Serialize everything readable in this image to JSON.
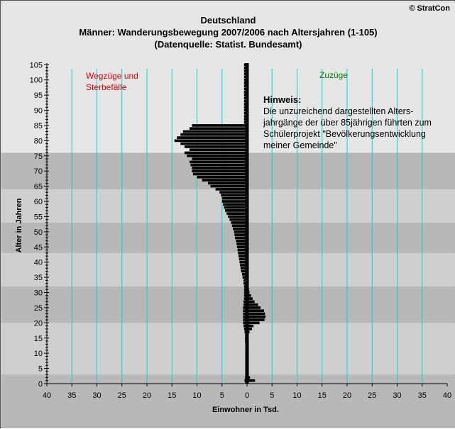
{
  "header": {
    "copyright": "© StratCon",
    "title_lines": [
      "Deutschland",
      "Männer: Wanderungsbewegung  2007/2006 nach Altersjahren (1-105)",
      "(Datenquelle: Statist. Bundesamt)"
    ]
  },
  "annotations": {
    "left_label": "Wegzüge und\nSterbefälle",
    "right_label": "Zuzüge",
    "note_title": "Hinweis:",
    "note_body": "Die unzureichend dargestellten Alters-\njahrgänge der über 85jährigen führten zum\nSchülerprojekt \"Bevölkerungsentwicklung\nmeiner Gemeinde\""
  },
  "colors": {
    "bars": "#000000",
    "gridline_vertical": "#00d8d8",
    "left_label": "#e00000",
    "right_label": "#008000",
    "band_dark": "#b8b8b8",
    "band_light": "#cfcfcf",
    "band_top": "#e6e6e6",
    "frame_background": "#d6d6d6"
  },
  "chart_data": {
    "type": "bar",
    "orientation": "horizontal",
    "title": "Deutschland",
    "xlabel": "Einwohner in Tsd.",
    "ylabel": "Alter in Jahren",
    "xlim": [
      -40,
      40
    ],
    "ylim": [
      0,
      106
    ],
    "x_ticks": [
      -40,
      -35,
      -30,
      -25,
      -20,
      -15,
      -10,
      -5,
      0,
      5,
      10,
      15,
      20,
      25,
      30,
      35,
      40
    ],
    "x_tick_labels": [
      "40",
      "35",
      "30",
      "25",
      "20",
      "15",
      "10",
      "5",
      "0",
      "5",
      "10",
      "15",
      "20",
      "25",
      "30",
      "35",
      "40"
    ],
    "y_ticks": [
      0,
      5,
      10,
      15,
      20,
      25,
      30,
      35,
      40,
      45,
      50,
      55,
      60,
      65,
      70,
      75,
      80,
      85,
      90,
      95,
      100,
      105
    ],
    "background_bands": [
      {
        "from": 0,
        "to": 3,
        "shade": "dark"
      },
      {
        "from": 3,
        "to": 20,
        "shade": "light"
      },
      {
        "from": 20,
        "to": 32,
        "shade": "dark"
      },
      {
        "from": 32,
        "to": 43,
        "shade": "light"
      },
      {
        "from": 43,
        "to": 53,
        "shade": "dark"
      },
      {
        "from": 53,
        "to": 64,
        "shade": "light"
      },
      {
        "from": 64,
        "to": 76,
        "shade": "dark"
      },
      {
        "from": 76,
        "to": 106,
        "shade": "top"
      }
    ],
    "ages": [
      1,
      2,
      3,
      4,
      5,
      6,
      7,
      8,
      9,
      10,
      11,
      12,
      13,
      14,
      15,
      16,
      17,
      18,
      19,
      20,
      21,
      22,
      23,
      24,
      25,
      26,
      27,
      28,
      29,
      30,
      31,
      32,
      33,
      34,
      35,
      36,
      37,
      38,
      39,
      40,
      41,
      42,
      43,
      44,
      45,
      46,
      47,
      48,
      49,
      50,
      51,
      52,
      53,
      54,
      55,
      56,
      57,
      58,
      59,
      60,
      61,
      62,
      63,
      64,
      65,
      66,
      67,
      68,
      69,
      70,
      71,
      72,
      73,
      74,
      75,
      76,
      77,
      78,
      79,
      80,
      81,
      82,
      83,
      84,
      85,
      86,
      87,
      88,
      89,
      90,
      91,
      92,
      93,
      94,
      95,
      96,
      97,
      98,
      99,
      100,
      101,
      102,
      103,
      104,
      105
    ],
    "series": [
      {
        "name": "Wegzüge und Sterbefälle",
        "side": "left",
        "values": [
          0.5,
          0.4,
          0.3,
          0.3,
          0.3,
          0.3,
          0.3,
          0.3,
          0.3,
          0.3,
          0.3,
          0.3,
          0.3,
          0.4,
          0.4,
          0.4,
          0.5,
          0.6,
          0.7,
          0.8,
          0.8,
          0.8,
          0.8,
          0.8,
          0.8,
          0.7,
          0.7,
          0.6,
          0.6,
          0.6,
          0.6,
          0.6,
          0.7,
          0.7,
          0.9,
          1.0,
          1.2,
          1.3,
          1.4,
          1.5,
          1.6,
          1.7,
          1.8,
          1.9,
          2.0,
          2.1,
          2.2,
          2.4,
          2.5,
          2.6,
          2.8,
          3.0,
          3.2,
          3.5,
          3.8,
          4.1,
          4.4,
          4.6,
          4.8,
          5.0,
          5.0,
          5.2,
          5.5,
          6.3,
          7.3,
          7.8,
          9.0,
          10.0,
          10.8,
          11.0,
          11.0,
          11.3,
          11.5,
          11.0,
          12.0,
          12.5,
          11.5,
          12.5,
          13.3,
          14.5,
          14.0,
          13.3,
          12.8,
          11.5,
          11.0,
          0.6,
          0.6,
          0.6,
          0.6,
          0.6,
          0.6,
          0.6,
          0.6,
          0.6,
          0.6,
          0.6,
          0.6,
          0.6,
          0.6,
          0.6,
          0.6,
          0.6,
          0.6,
          0.6,
          0.6
        ]
      },
      {
        "name": "Zuzüge",
        "side": "right",
        "values": [
          1.6,
          0.6,
          0.3,
          0.2,
          0.2,
          0.2,
          0.2,
          0.2,
          0.2,
          0.2,
          0.2,
          0.2,
          0.3,
          0.3,
          0.3,
          0.3,
          0.5,
          1.0,
          1.3,
          2.5,
          3.5,
          3.7,
          3.6,
          3.4,
          2.7,
          2.2,
          1.5,
          1.1,
          0.8,
          0.5,
          0.4,
          0.3,
          0.2,
          0.1,
          0,
          0,
          0,
          0,
          0,
          0,
          0,
          0,
          0,
          0,
          0,
          0,
          0,
          0,
          0,
          0,
          0,
          0,
          0,
          0,
          0,
          0,
          0,
          0,
          0,
          0,
          0,
          0,
          0,
          0,
          0,
          0,
          0,
          0,
          0,
          0,
          0,
          0,
          0,
          0,
          0,
          0,
          0,
          0,
          0,
          0,
          0,
          0,
          0,
          0,
          0,
          0,
          0,
          0,
          0,
          0,
          0,
          0,
          0,
          0,
          0,
          0,
          0,
          0,
          0,
          0,
          0,
          0,
          0,
          0,
          0
        ]
      }
    ]
  }
}
